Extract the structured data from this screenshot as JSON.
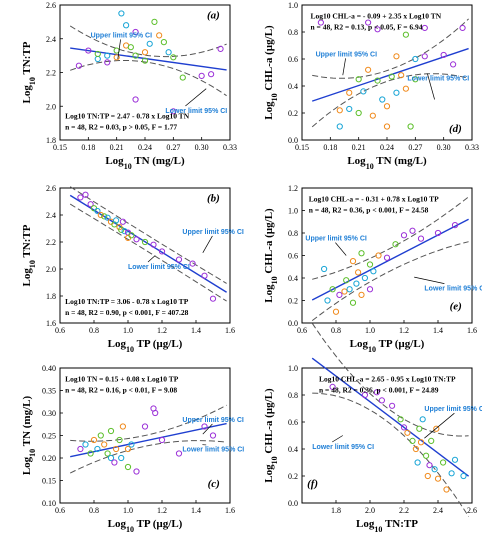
{
  "colors": {
    "purple": "#9b30d8",
    "orange": "#f08a1c",
    "green": "#5cbf2a",
    "cyan": "#19a5d6",
    "fit": "#1f3fd0",
    "ci": "#555555",
    "ci_text": "#1f7fd6"
  },
  "chart_data": [
    {
      "type": "scatter",
      "panel": "(a)",
      "xlabel_base": "Log",
      "xlabel_sub": "10",
      "xlabel_rest": " TN (mg/L)",
      "ylabel_base": "Log",
      "ylabel_sub": "10",
      "ylabel_rest": " TN:TP",
      "xlim": [
        0.15,
        0.33
      ],
      "ylim": [
        1.8,
        2.6
      ],
      "xticks": [
        "0.15",
        "0.18",
        "0.21",
        "0.24",
        "0.27",
        "0.30",
        "0.33"
      ],
      "yticks": [
        "1.8",
        "2.0",
        "2.2",
        "2.4",
        "2.6"
      ],
      "fit": [
        2.47,
        -0.78
      ],
      "eq1": "Log10 TN:TP = 2.47 - 0.78 x Log10 TN",
      "eq2": "n = 48, R2 = 0.03, p > 0.05, F = 1.77",
      "ci_upper_label": "Upper limit 95% CI",
      "ci_lower_label": "Lower limit 95% CI",
      "points": [
        {
          "x": 0.17,
          "y": 2.24,
          "c": "purple"
        },
        {
          "x": 0.18,
          "y": 2.33,
          "c": "purple"
        },
        {
          "x": 0.19,
          "y": 2.28,
          "c": "cyan"
        },
        {
          "x": 0.19,
          "y": 2.31,
          "c": "green"
        },
        {
          "x": 0.2,
          "y": 2.3,
          "c": "cyan"
        },
        {
          "x": 0.2,
          "y": 2.26,
          "c": "purple"
        },
        {
          "x": 0.21,
          "y": 2.29,
          "c": "orange"
        },
        {
          "x": 0.21,
          "y": 2.33,
          "c": "green"
        },
        {
          "x": 0.215,
          "y": 2.55,
          "c": "cyan"
        },
        {
          "x": 0.22,
          "y": 2.48,
          "c": "cyan"
        },
        {
          "x": 0.22,
          "y": 2.36,
          "c": "orange"
        },
        {
          "x": 0.225,
          "y": 2.35,
          "c": "green"
        },
        {
          "x": 0.23,
          "y": 2.44,
          "c": "purple"
        },
        {
          "x": 0.23,
          "y": 2.3,
          "c": "green"
        },
        {
          "x": 0.23,
          "y": 2.04,
          "c": "purple"
        },
        {
          "x": 0.24,
          "y": 2.32,
          "c": "orange"
        },
        {
          "x": 0.24,
          "y": 2.27,
          "c": "green"
        },
        {
          "x": 0.245,
          "y": 2.37,
          "c": "cyan"
        },
        {
          "x": 0.25,
          "y": 2.5,
          "c": "green"
        },
        {
          "x": 0.255,
          "y": 2.42,
          "c": "orange"
        },
        {
          "x": 0.26,
          "y": 2.38,
          "c": "green"
        },
        {
          "x": 0.265,
          "y": 2.32,
          "c": "cyan"
        },
        {
          "x": 0.27,
          "y": 2.29,
          "c": "green"
        },
        {
          "x": 0.27,
          "y": 1.97,
          "c": "purple"
        },
        {
          "x": 0.28,
          "y": 2.17,
          "c": "green"
        },
        {
          "x": 0.3,
          "y": 2.18,
          "c": "purple"
        },
        {
          "x": 0.31,
          "y": 2.19,
          "c": "purple"
        },
        {
          "x": 0.32,
          "y": 2.34,
          "c": "purple"
        }
      ]
    },
    {
      "type": "scatter",
      "panel": "(d)",
      "xlabel_base": "Log",
      "xlabel_sub": "10",
      "xlabel_rest": " TN (mg/L)",
      "ylabel_base": "Log",
      "ylabel_sub": "10",
      "ylabel_rest": " CHL-a (µg/L)",
      "xlim": [
        0.15,
        0.33
      ],
      "ylim": [
        0.0,
        1.0
      ],
      "xticks": [
        "0.15",
        "0.18",
        "0.21",
        "0.24",
        "0.27",
        "0.30",
        "0.33"
      ],
      "yticks": [
        "0.0",
        "0.2",
        "0.4",
        "0.6",
        "0.8",
        "1.0"
      ],
      "fit": [
        -0.09,
        2.35
      ],
      "eq1": "Log10 CHL-a = - 0.09 + 2.35 x Log10 TN",
      "eq2": "n = 48, R2 = 0.13, p < 0.05, F = 6.94",
      "ci_upper_label": "Upper limit 95% CI",
      "ci_lower_label": "Lower limit 95% CI",
      "points": [
        {
          "x": 0.17,
          "y": 0.87,
          "c": "purple"
        },
        {
          "x": 0.19,
          "y": 0.22,
          "c": "orange"
        },
        {
          "x": 0.19,
          "y": 0.1,
          "c": "cyan"
        },
        {
          "x": 0.2,
          "y": 0.35,
          "c": "orange"
        },
        {
          "x": 0.2,
          "y": 0.23,
          "c": "cyan"
        },
        {
          "x": 0.21,
          "y": 0.2,
          "c": "green"
        },
        {
          "x": 0.21,
          "y": 0.45,
          "c": "green"
        },
        {
          "x": 0.215,
          "y": 0.36,
          "c": "cyan"
        },
        {
          "x": 0.22,
          "y": 0.87,
          "c": "purple"
        },
        {
          "x": 0.22,
          "y": 0.52,
          "c": "orange"
        },
        {
          "x": 0.225,
          "y": 0.18,
          "c": "orange"
        },
        {
          "x": 0.23,
          "y": 0.82,
          "c": "purple"
        },
        {
          "x": 0.23,
          "y": 0.44,
          "c": "green"
        },
        {
          "x": 0.235,
          "y": 0.3,
          "c": "cyan"
        },
        {
          "x": 0.24,
          "y": 0.25,
          "c": "orange"
        },
        {
          "x": 0.24,
          "y": 0.1,
          "c": "orange"
        },
        {
          "x": 0.245,
          "y": 0.47,
          "c": "green"
        },
        {
          "x": 0.25,
          "y": 0.62,
          "c": "orange"
        },
        {
          "x": 0.25,
          "y": 0.35,
          "c": "cyan"
        },
        {
          "x": 0.255,
          "y": 0.48,
          "c": "orange"
        },
        {
          "x": 0.26,
          "y": 0.78,
          "c": "green"
        },
        {
          "x": 0.26,
          "y": 0.38,
          "c": "orange"
        },
        {
          "x": 0.265,
          "y": 0.1,
          "c": "green"
        },
        {
          "x": 0.27,
          "y": 0.6,
          "c": "cyan"
        },
        {
          "x": 0.27,
          "y": 0.45,
          "c": "green"
        },
        {
          "x": 0.28,
          "y": 0.62,
          "c": "purple"
        },
        {
          "x": 0.28,
          "y": 0.83,
          "c": "purple"
        },
        {
          "x": 0.3,
          "y": 0.63,
          "c": "purple"
        },
        {
          "x": 0.31,
          "y": 0.56,
          "c": "purple"
        },
        {
          "x": 0.32,
          "y": 0.83,
          "c": "purple"
        }
      ]
    },
    {
      "type": "scatter",
      "panel": "(b)",
      "xlabel_base": "Log",
      "xlabel_sub": "10",
      "xlabel_rest": " TP (µg/L)",
      "ylabel_base": "Log",
      "ylabel_sub": "10",
      "ylabel_rest": " TN:TP",
      "xlim": [
        0.6,
        1.6
      ],
      "ylim": [
        1.6,
        2.6
      ],
      "xticks": [
        "0.6",
        "0.8",
        "1.0",
        "1.2",
        "1.4",
        "1.6"
      ],
      "yticks": [
        "1.6",
        "1.8",
        "2.0",
        "2.2",
        "2.4",
        "2.6"
      ],
      "fit": [
        3.06,
        -0.78
      ],
      "eq1": "Log10 TN:TP = 3.06 - 0.78 x Log10 TP",
      "eq2": "n = 48, R2 = 0.90, p < 0.001, F = 407.28",
      "ci_upper_label": "Upper limit 95% CI",
      "ci_lower_label": "Lower limit 95% CI",
      "points": [
        {
          "x": 0.72,
          "y": 2.53,
          "c": "purple"
        },
        {
          "x": 0.75,
          "y": 2.55,
          "c": "purple"
        },
        {
          "x": 0.78,
          "y": 2.48,
          "c": "purple"
        },
        {
          "x": 0.8,
          "y": 2.45,
          "c": "green"
        },
        {
          "x": 0.82,
          "y": 2.43,
          "c": "cyan"
        },
        {
          "x": 0.84,
          "y": 2.4,
          "c": "orange"
        },
        {
          "x": 0.86,
          "y": 2.39,
          "c": "green"
        },
        {
          "x": 0.88,
          "y": 2.38,
          "c": "cyan"
        },
        {
          "x": 0.9,
          "y": 2.35,
          "c": "orange"
        },
        {
          "x": 0.92,
          "y": 2.33,
          "c": "green"
        },
        {
          "x": 0.93,
          "y": 2.36,
          "c": "cyan"
        },
        {
          "x": 0.95,
          "y": 2.31,
          "c": "orange"
        },
        {
          "x": 0.96,
          "y": 2.29,
          "c": "green"
        },
        {
          "x": 0.97,
          "y": 2.35,
          "c": "purple"
        },
        {
          "x": 0.98,
          "y": 2.28,
          "c": "cyan"
        },
        {
          "x": 1.0,
          "y": 2.27,
          "c": "purple"
        },
        {
          "x": 1.0,
          "y": 2.23,
          "c": "orange"
        },
        {
          "x": 1.02,
          "y": 2.25,
          "c": "green"
        },
        {
          "x": 1.05,
          "y": 2.22,
          "c": "purple"
        },
        {
          "x": 1.1,
          "y": 2.2,
          "c": "green"
        },
        {
          "x": 1.15,
          "y": 2.18,
          "c": "purple"
        },
        {
          "x": 1.2,
          "y": 2.13,
          "c": "purple"
        },
        {
          "x": 1.3,
          "y": 2.07,
          "c": "purple"
        },
        {
          "x": 1.38,
          "y": 2.04,
          "c": "purple"
        },
        {
          "x": 1.45,
          "y": 1.95,
          "c": "purple"
        },
        {
          "x": 1.5,
          "y": 1.78,
          "c": "purple"
        }
      ]
    },
    {
      "type": "scatter",
      "panel": "(e)",
      "xlabel_base": "Log",
      "xlabel_sub": "10",
      "xlabel_rest": " TP (µg/L)",
      "ylabel_base": "Log",
      "ylabel_sub": "10",
      "ylabel_rest": " CHL-a (µg/L)",
      "xlim": [
        0.6,
        1.6
      ],
      "ylim": [
        0.0,
        1.2
      ],
      "xticks": [
        "0.6",
        "0.8",
        "1.0",
        "1.2",
        "1.4",
        "1.6"
      ],
      "yticks": [
        "0.0",
        "0.2",
        "0.4",
        "0.6",
        "0.8",
        "1.0",
        "1.2"
      ],
      "fit": [
        -0.31,
        0.78
      ],
      "eq1": "Log10 CHL-a = - 0.31 + 0.78 x Log10 TP",
      "eq2": "n = 48, R2 = 0.36, p < 0.001, F = 24.58",
      "ci_upper_label": "Upper limit 95% CI",
      "ci_lower_label": "Lower limit 95% CI",
      "points": [
        {
          "x": 0.73,
          "y": 0.48,
          "c": "cyan"
        },
        {
          "x": 0.75,
          "y": 0.2,
          "c": "cyan"
        },
        {
          "x": 0.78,
          "y": 0.3,
          "c": "green"
        },
        {
          "x": 0.8,
          "y": 0.1,
          "c": "orange"
        },
        {
          "x": 0.82,
          "y": 0.25,
          "c": "purple"
        },
        {
          "x": 0.85,
          "y": 0.28,
          "c": "orange"
        },
        {
          "x": 0.86,
          "y": 0.38,
          "c": "green"
        },
        {
          "x": 0.88,
          "y": 0.3,
          "c": "cyan"
        },
        {
          "x": 0.9,
          "y": 0.55,
          "c": "orange"
        },
        {
          "x": 0.9,
          "y": 0.18,
          "c": "green"
        },
        {
          "x": 0.92,
          "y": 0.35,
          "c": "cyan"
        },
        {
          "x": 0.93,
          "y": 0.45,
          "c": "orange"
        },
        {
          "x": 0.95,
          "y": 0.62,
          "c": "green"
        },
        {
          "x": 0.95,
          "y": 0.25,
          "c": "orange"
        },
        {
          "x": 0.97,
          "y": 0.4,
          "c": "cyan"
        },
        {
          "x": 1.0,
          "y": 0.52,
          "c": "green"
        },
        {
          "x": 1.0,
          "y": 0.3,
          "c": "purple"
        },
        {
          "x": 1.02,
          "y": 0.46,
          "c": "cyan"
        },
        {
          "x": 1.05,
          "y": 0.6,
          "c": "orange"
        },
        {
          "x": 1.1,
          "y": 0.58,
          "c": "purple"
        },
        {
          "x": 1.15,
          "y": 0.7,
          "c": "green"
        },
        {
          "x": 1.2,
          "y": 0.78,
          "c": "purple"
        },
        {
          "x": 1.25,
          "y": 0.82,
          "c": "purple"
        },
        {
          "x": 1.3,
          "y": 0.75,
          "c": "purple"
        },
        {
          "x": 1.4,
          "y": 0.8,
          "c": "purple"
        },
        {
          "x": 1.5,
          "y": 0.87,
          "c": "purple"
        }
      ]
    },
    {
      "type": "scatter",
      "panel": "(c)",
      "xlabel_base": "Log",
      "xlabel_sub": "10",
      "xlabel_rest": " TP (µg/L)",
      "ylabel_base": "Log",
      "ylabel_sub": "10",
      "ylabel_rest": " TN (mg/L)",
      "xlim": [
        0.6,
        1.6
      ],
      "ylim": [
        0.1,
        0.4
      ],
      "xticks": [
        "0.6",
        "0.8",
        "1.0",
        "1.2",
        "1.4",
        "1.6"
      ],
      "yticks": [
        "0.10",
        "0.15",
        "0.20",
        "0.25",
        "0.30",
        "0.35",
        "0.40"
      ],
      "fit": [
        0.15,
        0.08
      ],
      "eq1": "Log10 TN = 0.15 + 0.08 x Log10 TP",
      "eq2": "n = 48, R2 = 0.16, p < 0.01, F = 9.08",
      "ci_upper_label": "Upper limit 95% CI",
      "ci_lower_label": "Lower limit 95% CI",
      "points": [
        {
          "x": 0.72,
          "y": 0.22,
          "c": "purple"
        },
        {
          "x": 0.75,
          "y": 0.23,
          "c": "cyan"
        },
        {
          "x": 0.78,
          "y": 0.21,
          "c": "green"
        },
        {
          "x": 0.8,
          "y": 0.24,
          "c": "orange"
        },
        {
          "x": 0.82,
          "y": 0.22,
          "c": "cyan"
        },
        {
          "x": 0.84,
          "y": 0.25,
          "c": "green"
        },
        {
          "x": 0.86,
          "y": 0.23,
          "c": "orange"
        },
        {
          "x": 0.88,
          "y": 0.21,
          "c": "green"
        },
        {
          "x": 0.9,
          "y": 0.2,
          "c": "cyan"
        },
        {
          "x": 0.9,
          "y": 0.26,
          "c": "green"
        },
        {
          "x": 0.92,
          "y": 0.19,
          "c": "purple"
        },
        {
          "x": 0.93,
          "y": 0.22,
          "c": "orange"
        },
        {
          "x": 0.95,
          "y": 0.24,
          "c": "green"
        },
        {
          "x": 0.96,
          "y": 0.2,
          "c": "cyan"
        },
        {
          "x": 0.97,
          "y": 0.27,
          "c": "orange"
        },
        {
          "x": 1.0,
          "y": 0.22,
          "c": "orange"
        },
        {
          "x": 1.0,
          "y": 0.18,
          "c": "green"
        },
        {
          "x": 1.02,
          "y": 0.23,
          "c": "cyan"
        },
        {
          "x": 1.05,
          "y": 0.17,
          "c": "purple"
        },
        {
          "x": 1.1,
          "y": 0.27,
          "c": "purple"
        },
        {
          "x": 1.15,
          "y": 0.31,
          "c": "purple"
        },
        {
          "x": 1.16,
          "y": 0.3,
          "c": "purple"
        },
        {
          "x": 1.2,
          "y": 0.24,
          "c": "purple"
        },
        {
          "x": 1.3,
          "y": 0.21,
          "c": "purple"
        },
        {
          "x": 1.45,
          "y": 0.27,
          "c": "purple"
        },
        {
          "x": 1.5,
          "y": 0.25,
          "c": "purple"
        }
      ]
    },
    {
      "type": "scatter",
      "panel": "(f)",
      "xlabel_base": "Log",
      "xlabel_sub": "10",
      "xlabel_rest": " TN:TP",
      "ylabel_base": "Log",
      "ylabel_sub": "10",
      "ylabel_rest": " CHL-a (µg/L)",
      "xlim": [
        1.6,
        2.6
      ],
      "ylim": [
        0.0,
        1.0
      ],
      "xticks": [
        "1.8",
        "2.0",
        "2.2",
        "2.4",
        "2.6"
      ],
      "yticks": [
        "0.0",
        "0.2",
        "0.4",
        "0.6",
        "0.8",
        "1.0"
      ],
      "fit": [
        2.65,
        -0.95
      ],
      "eq1": "Log10 CHL-a = 2.65 - 0.95 x Log10 TN:TP",
      "eq2": "n = 48, R2 = 0.36, p < 0.001, F = 24.89",
      "ci_upper_label": "Upper limit 95% CI",
      "ci_lower_label": "Lower limit 95% CI",
      "points": [
        {
          "x": 1.78,
          "y": 0.86,
          "c": "purple"
        },
        {
          "x": 1.97,
          "y": 0.8,
          "c": "purple"
        },
        {
          "x": 2.04,
          "y": 0.82,
          "c": "purple"
        },
        {
          "x": 2.07,
          "y": 0.76,
          "c": "purple"
        },
        {
          "x": 2.13,
          "y": 0.72,
          "c": "purple"
        },
        {
          "x": 2.18,
          "y": 0.62,
          "c": "green"
        },
        {
          "x": 2.2,
          "y": 0.56,
          "c": "purple"
        },
        {
          "x": 2.22,
          "y": 0.52,
          "c": "orange"
        },
        {
          "x": 2.25,
          "y": 0.46,
          "c": "green"
        },
        {
          "x": 2.27,
          "y": 0.4,
          "c": "orange"
        },
        {
          "x": 2.28,
          "y": 0.3,
          "c": "cyan"
        },
        {
          "x": 2.29,
          "y": 0.55,
          "c": "green"
        },
        {
          "x": 2.3,
          "y": 0.45,
          "c": "orange"
        },
        {
          "x": 2.31,
          "y": 0.62,
          "c": "cyan"
        },
        {
          "x": 2.33,
          "y": 0.35,
          "c": "green"
        },
        {
          "x": 2.34,
          "y": 0.2,
          "c": "orange"
        },
        {
          "x": 2.35,
          "y": 0.28,
          "c": "purple"
        },
        {
          "x": 2.36,
          "y": 0.46,
          "c": "green"
        },
        {
          "x": 2.38,
          "y": 0.25,
          "c": "cyan"
        },
        {
          "x": 2.39,
          "y": 0.55,
          "c": "orange"
        },
        {
          "x": 2.4,
          "y": 0.18,
          "c": "orange"
        },
        {
          "x": 2.43,
          "y": 0.3,
          "c": "green"
        },
        {
          "x": 2.45,
          "y": 0.1,
          "c": "orange"
        },
        {
          "x": 2.48,
          "y": 0.22,
          "c": "cyan"
        },
        {
          "x": 2.5,
          "y": 0.32,
          "c": "cyan"
        },
        {
          "x": 2.55,
          "y": 0.2,
          "c": "cyan"
        }
      ]
    }
  ]
}
